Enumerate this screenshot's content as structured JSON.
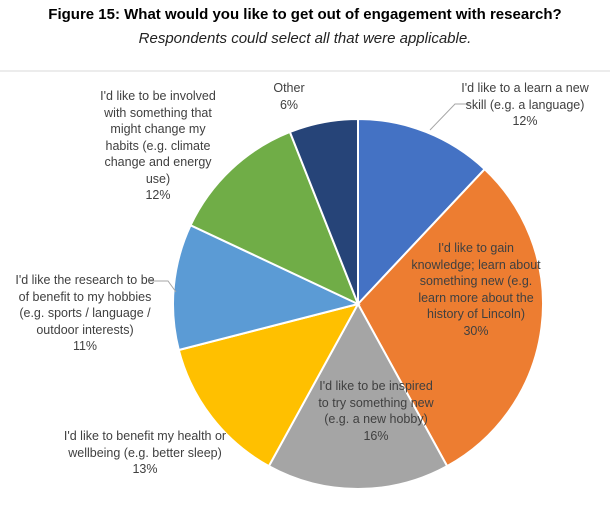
{
  "chart_data": {
    "type": "pie",
    "title": "Figure 15: What would you like to get out of engagement with research?",
    "subtitle": "Respondents could select all that were applicable.",
    "categories": [
      "I'd like to a learn a new skill (e.g. a language)",
      "I'd like to gain knowledge; learn about something new (e.g. learn more about the history of Lincoln)",
      "I'd like to be inspired to try something new (e.g. a new hobby)",
      "I'd like to benefit my health or wellbeing (e.g. better sleep)",
      "I'd like the research to be of benefit to my hobbies (e.g. sports / language / outdoor interests)",
      "I'd like to be involved with something that might change my habits (e.g. climate change and energy use)",
      "Other"
    ],
    "values": [
      12,
      30,
      16,
      13,
      11,
      12,
      6
    ],
    "value_labels": [
      "12%",
      "30%",
      "16%",
      "13%",
      "11%",
      "12%",
      "6%"
    ],
    "colors": [
      "#4472c4",
      "#ed7d31",
      "#a5a5a5",
      "#ffc000",
      "#5b9bd5",
      "#70ad47",
      "#264478"
    ]
  }
}
